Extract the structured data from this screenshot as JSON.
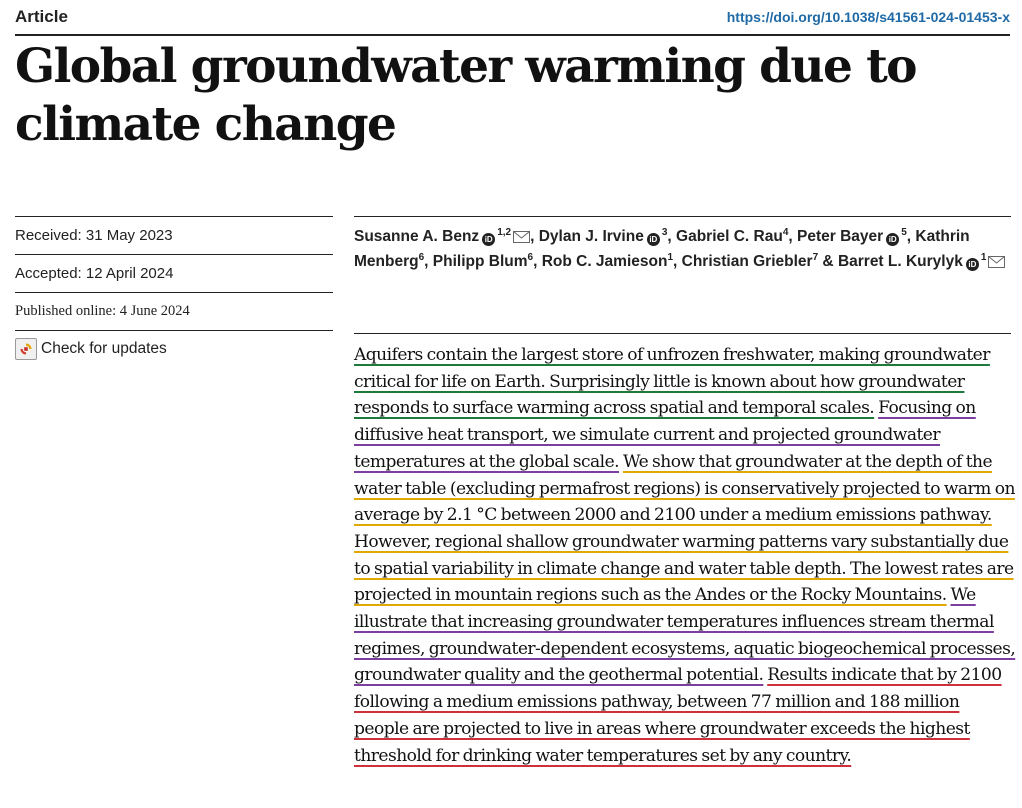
{
  "header": {
    "article_type": "Article",
    "doi": "https://doi.org/10.1038/s41561-024-01453-x"
  },
  "title": {
    "line1": "Global groundwater warming due to",
    "line2": "climate change"
  },
  "meta": {
    "received": "Received: 31 May 2023",
    "accepted": "Accepted: 12 April 2024",
    "published": "Published online: 4 June 2024",
    "check_updates": "Check for updates"
  },
  "authors": [
    {
      "name": "Susanne A. Benz",
      "aff": "1,2",
      "orcid": true,
      "email": true
    },
    {
      "name": "Dylan J. Irvine",
      "aff": "3",
      "orcid": true
    },
    {
      "name": "Gabriel C. Rau",
      "aff": "4"
    },
    {
      "name": "Peter Bayer",
      "aff": "5",
      "orcid": true
    },
    {
      "name": "Kathrin Menberg",
      "aff": "6"
    },
    {
      "name": "Philipp Blum",
      "aff": "6"
    },
    {
      "name": "Rob C. Jamieson",
      "aff": "1"
    },
    {
      "name": "Christian Griebler",
      "aff": "7"
    },
    {
      "name": "Barret L. Kurylyk",
      "aff": "1",
      "orcid": true,
      "email": true
    }
  ],
  "orcid_glyph": "iD",
  "abstract_segments": [
    {
      "text": "Aquifers contain the largest store of unfrozen freshwater, making groundwater critical for life on Earth. Surprisingly little is known about how groundwater responds to surface warming across spatial and temporal scales.",
      "color": "#1b7a3c"
    },
    {
      "text": "Focusing on diffusive heat transport, we simulate current and projected groundwater temperatures at the global scale.",
      "color": "#7b3fa0"
    },
    {
      "text": "We show that groundwater at the depth of the water table (excluding permafrost regions) is conservatively projected to warm on average by 2.1 °C between 2000 and 2100 under a medium emissions pathway. However, regional shallow groundwater warming patterns vary substantially due to spatial variability in climate change and water table depth. The lowest rates are projected in mountain regions such as the Andes or the Rocky Mountains.",
      "color": "#e0a800"
    },
    {
      "text": "We illustrate that increasing groundwater temperatures influences stream thermal regimes, groundwater-dependent ecosystems, aquatic biogeochemical processes, groundwater quality and the geothermal potential.",
      "color": "#7b3fa0"
    },
    {
      "text": "Results indicate that by 2100 following a medium emissions pathway, between 77 million and 188 million people are projected to live in areas where groundwater exceeds the highest threshold for drinking water temperatures set by any country.",
      "color": "#d0303a"
    }
  ]
}
